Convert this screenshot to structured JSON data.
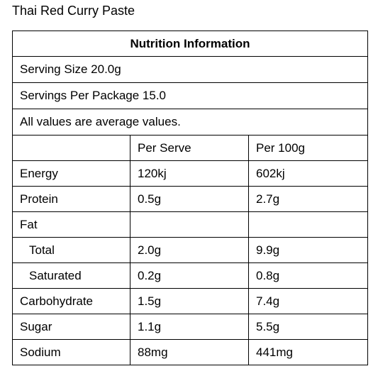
{
  "title": "Thai Red Curry Paste",
  "table": {
    "heading": "Nutrition Information",
    "serving_size": "Serving Size 20.0g",
    "servings_per_package": "Servings Per Package 15.0",
    "note": "All values are average values.",
    "columns": [
      "",
      "Per Serve",
      "Per 100g"
    ],
    "rows": [
      {
        "label": "Energy",
        "per_serve": "120kj",
        "per_100g": "602kj",
        "indent": false
      },
      {
        "label": "Protein",
        "per_serve": "0.5g",
        "per_100g": "2.7g",
        "indent": false
      },
      {
        "label": "Fat",
        "per_serve": "",
        "per_100g": "",
        "indent": false
      },
      {
        "label": "Total",
        "per_serve": "2.0g",
        "per_100g": "9.9g",
        "indent": true
      },
      {
        "label": "Saturated",
        "per_serve": "0.2g",
        "per_100g": "0.8g",
        "indent": true
      },
      {
        "label": "Carbohydrate",
        "per_serve": "1.5g",
        "per_100g": "7.4g",
        "indent": false
      },
      {
        "label": "Sugar",
        "per_serve": "1.1g",
        "per_100g": "5.5g",
        "indent": false
      },
      {
        "label": "Sodium",
        "per_serve": "88mg",
        "per_100g": "441mg",
        "indent": false
      }
    ]
  }
}
